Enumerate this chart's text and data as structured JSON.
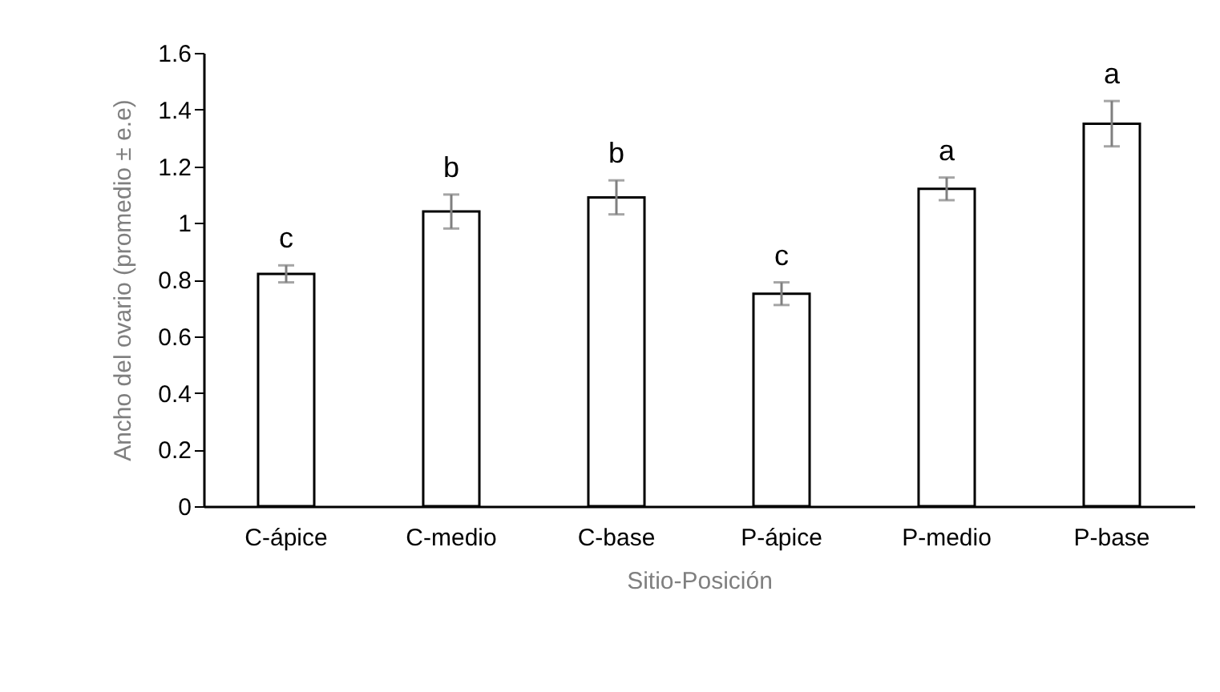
{
  "chart_data": {
    "type": "bar",
    "xlabel": "Sitio-Posición",
    "ylabel": "Ancho del ovario (promedio ± e.e)",
    "categories": [
      "C-ápice",
      "C-medio",
      "C-base",
      "P-ápice",
      "P-medio",
      "P-base"
    ],
    "values": [
      0.82,
      1.04,
      1.09,
      0.75,
      1.12,
      1.35
    ],
    "errors": [
      0.03,
      0.06,
      0.06,
      0.04,
      0.04,
      0.08
    ],
    "colors": [
      "#ffffff",
      "#ffffff",
      "#ffffff",
      "#ffffff",
      "#ffffff",
      "#ffffff"
    ],
    "ylim": [
      0,
      1.6
    ],
    "yticks": [
      0,
      0.2,
      0.4,
      0.6,
      0.8,
      1,
      1.2,
      1.4,
      1.6
    ],
    "grid": false,
    "annotations": [
      {
        "text": "c",
        "x": "C-ápice",
        "y": 0.85
      },
      {
        "text": "b",
        "x": "C-medio",
        "y": 1.1
      },
      {
        "text": "b",
        "x": "C-base",
        "y": 1.15
      },
      {
        "text": "c",
        "x": "P-ápice",
        "y": 0.79
      },
      {
        "text": "a",
        "x": "P-medio",
        "y": 1.16
      },
      {
        "text": "a",
        "x": "P-base",
        "y": 1.43
      }
    ]
  }
}
